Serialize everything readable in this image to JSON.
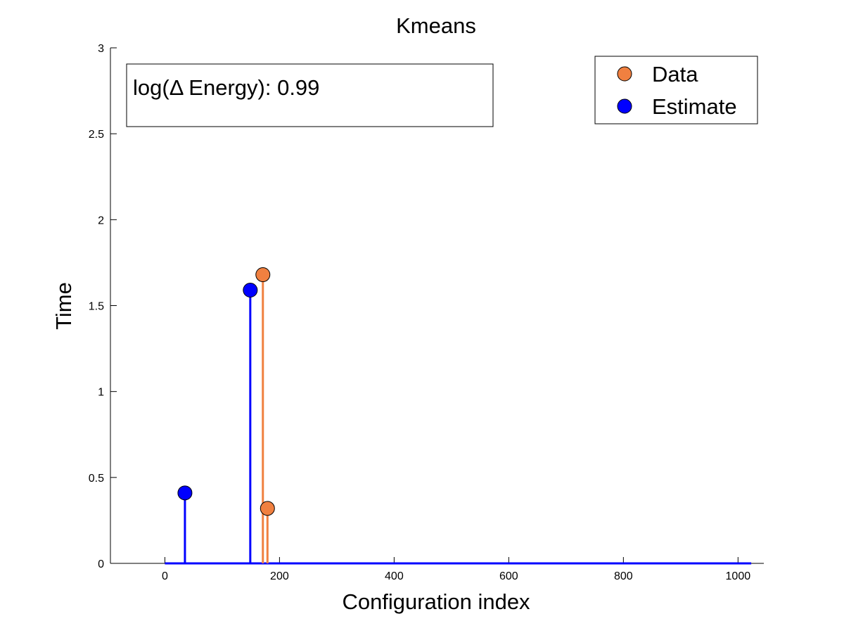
{
  "chart_data": {
    "type": "stem",
    "title": "Kmeans",
    "xlabel": "Configuration index",
    "ylabel": "Time",
    "xlim": [
      -95,
      1045
    ],
    "ylim": [
      0,
      3
    ],
    "xticks": [
      0,
      200,
      400,
      600,
      800,
      1000
    ],
    "xtick_labels": [
      "0",
      "200",
      "400",
      "600",
      "800",
      "1000"
    ],
    "yticks": [
      0,
      0.5,
      1,
      1.5,
      2,
      2.5,
      3
    ],
    "ytick_labels": [
      "0",
      "0.5",
      "1",
      "1.5",
      "2",
      "2.5",
      "3"
    ],
    "baseline_range": [
      0,
      1023
    ],
    "grid": false,
    "legend_position": "top-right",
    "series": [
      {
        "name": "Data",
        "color": "#f08040",
        "points": [
          {
            "x": 171,
            "y": 1.68
          },
          {
            "x": 179,
            "y": 0.32
          }
        ]
      },
      {
        "name": "Estimate",
        "color": "#0000ff",
        "points": [
          {
            "x": 35,
            "y": 0.41
          },
          {
            "x": 149,
            "y": 1.59
          }
        ]
      }
    ],
    "annotation": {
      "text": "log(Δ Energy): 0.99"
    }
  }
}
